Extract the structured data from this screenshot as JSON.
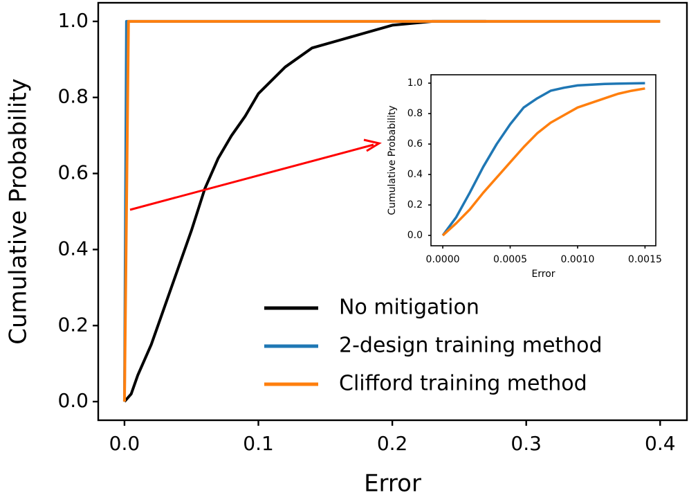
{
  "chart_data": [
    {
      "type": "line",
      "x_label": "Error",
      "y_label": "Cumulative Probability",
      "xlim": [
        -0.0196,
        0.42
      ],
      "ylim": [
        -0.049,
        1.049
      ],
      "xticks": [
        {
          "value": 0,
          "label": "0.0"
        },
        0.1,
        0.2,
        0.3,
        0.4
      ],
      "yticks": [
        {
          "value": 0,
          "label": "0.0"
        },
        0.2,
        0.4,
        0.6,
        0.8,
        {
          "value": 1,
          "label": "1.0"
        }
      ],
      "legend": "lower right",
      "series": [
        {
          "name": "No mitigation",
          "color": "#000000",
          "x": [
            0,
            0.005,
            0.01,
            0.02,
            0.03,
            0.04,
            0.05,
            0.06,
            0.07,
            0.08,
            0.09,
            0.1,
            0.12,
            0.14,
            0.16,
            0.18,
            0.2,
            0.23,
            0.27
          ],
          "values": [
            0,
            0.02,
            0.07,
            0.15,
            0.25,
            0.35,
            0.45,
            0.56,
            0.64,
            0.7,
            0.75,
            0.81,
            0.88,
            0.93,
            0.95,
            0.97,
            0.99,
            1.0,
            1.0
          ]
        },
        {
          "name": "2-design training method",
          "color": "#1f77b4",
          "x": [
            0,
            0.0015,
            0.4
          ],
          "values": [
            0,
            1.0,
            1.0
          ]
        },
        {
          "name": "Clifford training method",
          "color": "#ff7f0e",
          "x": [
            0,
            0.003,
            0.4
          ],
          "values": [
            0,
            1.0,
            1.0
          ]
        }
      ]
    },
    {
      "type": "line",
      "x_label": "Error",
      "y_label": "Cumulative Probability",
      "xlim": [
        -8.75e-05,
        0.00158
      ],
      "ylim": [
        -0.068,
        1.055
      ],
      "xticks": [
        {
          "value": 0,
          "label": "0.0000"
        },
        {
          "value": 0.0005,
          "label": "0.0005"
        },
        {
          "value": 0.001,
          "label": "0.0010"
        },
        {
          "value": 0.0015,
          "label": "0.0015"
        }
      ],
      "yticks": [
        {
          "value": 0,
          "label": "0.0"
        },
        0.2,
        0.4,
        0.6,
        0.8,
        {
          "value": 1,
          "label": "1.0"
        }
      ],
      "series": [
        {
          "color": "#1f77b4",
          "x": [
            0,
            0.0001,
            0.0002,
            0.0003,
            0.0004,
            0.0005,
            0.0006,
            0.0007,
            0.0008,
            0.0009,
            0.001,
            0.0012,
            0.0015
          ],
          "values": [
            0,
            0.12,
            0.28,
            0.45,
            0.6,
            0.73,
            0.84,
            0.9,
            0.95,
            0.97,
            0.985,
            0.995,
            1.0
          ]
        },
        {
          "color": "#ff7f0e",
          "x": [
            0,
            0.0001,
            0.0002,
            0.0003,
            0.0004,
            0.0005,
            0.0006,
            0.0007,
            0.0008,
            0.0009,
            0.001,
            0.0011,
            0.0012,
            0.0013,
            0.0014,
            0.0015
          ],
          "values": [
            0,
            0.08,
            0.17,
            0.28,
            0.38,
            0.48,
            0.58,
            0.67,
            0.74,
            0.79,
            0.84,
            0.87,
            0.9,
            0.93,
            0.95,
            0.965
          ]
        }
      ]
    }
  ]
}
